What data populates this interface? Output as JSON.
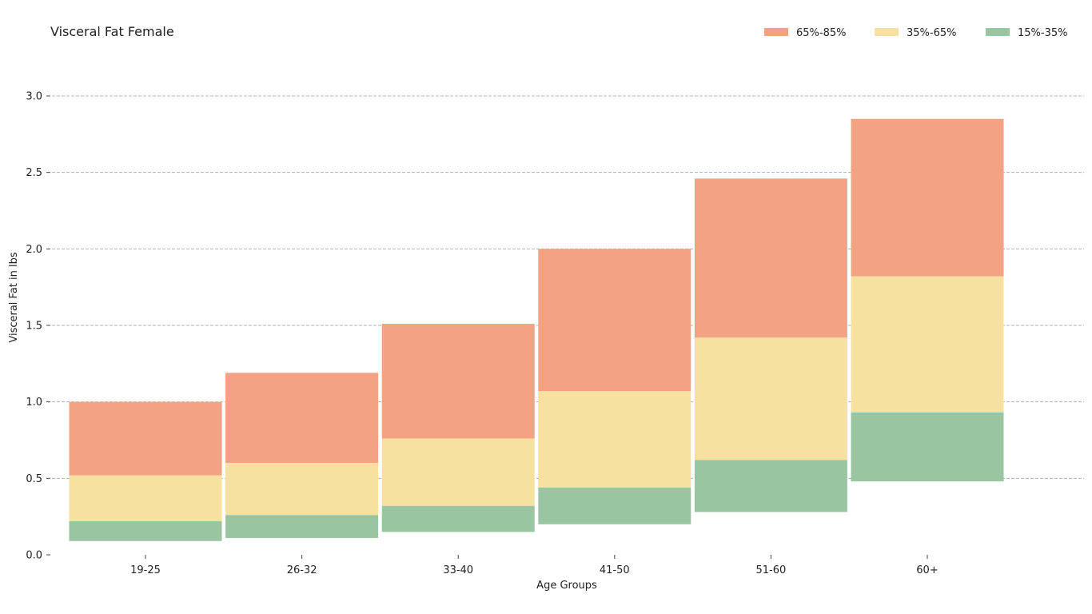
{
  "chart_data": {
    "type": "bar",
    "stacked": "floating-ranges",
    "title": "Visceral Fat Female",
    "xlabel": "Age Groups",
    "ylabel": "Visceral Fat in lbs",
    "ylim": [
      0,
      3.0
    ],
    "yticks": [
      "0.0",
      "0.5",
      "1.0",
      "1.5",
      "2.0",
      "2.5",
      "3.0"
    ],
    "grid": true,
    "legend_position": "top-right",
    "categories": [
      "19-25",
      "26-32",
      "33-40",
      "41-50",
      "51-60",
      "60+"
    ],
    "series": [
      {
        "name": "65%-85%",
        "color": "#f3a383",
        "bottom": [
          0.52,
          0.6,
          0.76,
          1.07,
          1.42,
          1.82
        ],
        "top": [
          1.0,
          1.19,
          1.51,
          2.0,
          2.46,
          2.85
        ]
      },
      {
        "name": "35%-65%",
        "color": "#f7e1a0",
        "bottom": [
          0.22,
          0.26,
          0.32,
          0.44,
          0.62,
          0.93
        ],
        "top": [
          0.52,
          0.6,
          0.76,
          1.07,
          1.42,
          1.82
        ]
      },
      {
        "name": "15%-35%",
        "color": "#99c5a1",
        "bottom": [
          0.09,
          0.11,
          0.15,
          0.2,
          0.28,
          0.48
        ],
        "top": [
          0.22,
          0.26,
          0.32,
          0.44,
          0.62,
          0.93
        ]
      }
    ]
  }
}
